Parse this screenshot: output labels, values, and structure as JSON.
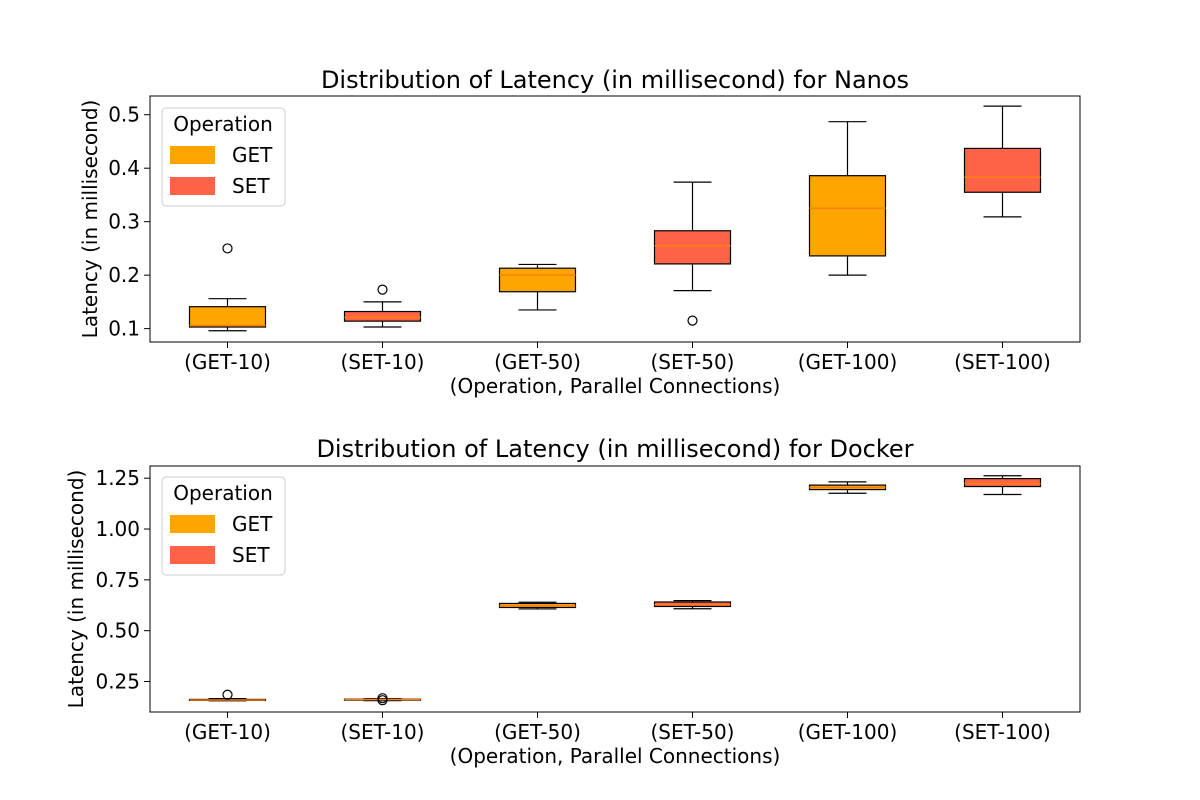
{
  "colors": {
    "GET": "#ffa500",
    "SET": "#ff6347",
    "median": "#ff7f0e",
    "frame": "#000000"
  },
  "chart_data": [
    {
      "type": "box",
      "title": "Distribution of Latency (in millisecond) for Nanos",
      "xlabel": "(Operation, Parallel Connections)",
      "ylabel": "Latency (in millisecond)",
      "ylim": [
        0.075,
        0.535
      ],
      "yticks": [
        0.1,
        0.2,
        0.3,
        0.4,
        0.5
      ],
      "ytick_labels": [
        "0.1",
        "0.2",
        "0.3",
        "0.4",
        "0.5"
      ],
      "categories": [
        "(GET-10)",
        "(SET-10)",
        "(GET-50)",
        "(SET-50)",
        "(GET-100)",
        "(SET-100)"
      ],
      "legend": {
        "title": "Operation",
        "entries": [
          "GET",
          "SET"
        ],
        "location": "upper left"
      },
      "boxes": [
        {
          "operation": "GET",
          "whislo": 0.096,
          "q1": 0.103,
          "med": 0.106,
          "q3": 0.141,
          "whishi": 0.156,
          "fliers": [
            0.25
          ]
        },
        {
          "operation": "SET",
          "whislo": 0.103,
          "q1": 0.114,
          "med": 0.121,
          "q3": 0.132,
          "whishi": 0.15,
          "fliers": [
            0.173
          ]
        },
        {
          "operation": "GET",
          "whislo": 0.135,
          "q1": 0.169,
          "med": 0.2,
          "q3": 0.213,
          "whishi": 0.22,
          "fliers": []
        },
        {
          "operation": "SET",
          "whislo": 0.171,
          "q1": 0.221,
          "med": 0.255,
          "q3": 0.283,
          "whishi": 0.374,
          "fliers": [
            0.115
          ]
        },
        {
          "operation": "GET",
          "whislo": 0.2,
          "q1": 0.236,
          "med": 0.325,
          "q3": 0.386,
          "whishi": 0.487,
          "fliers": []
        },
        {
          "operation": "SET",
          "whislo": 0.309,
          "q1": 0.355,
          "med": 0.383,
          "q3": 0.437,
          "whishi": 0.516,
          "fliers": []
        }
      ]
    },
    {
      "type": "box",
      "title": "Distribution of Latency (in millisecond) for Docker",
      "xlabel": "(Operation, Parallel Connections)",
      "ylabel": "Latency (in millisecond)",
      "ylim": [
        0.1,
        1.31
      ],
      "yticks": [
        0.25,
        0.5,
        0.75,
        1.0,
        1.25
      ],
      "ytick_labels": [
        "0.25",
        "0.50",
        "0.75",
        "1.00",
        "1.25"
      ],
      "categories": [
        "(GET-10)",
        "(SET-10)",
        "(GET-50)",
        "(SET-50)",
        "(GET-100)",
        "(SET-100)"
      ],
      "legend": {
        "title": "Operation",
        "entries": [
          "GET",
          "SET"
        ],
        "location": "upper left"
      },
      "boxes": [
        {
          "operation": "GET",
          "whislo": 0.155,
          "q1": 0.157,
          "med": 0.159,
          "q3": 0.162,
          "whishi": 0.166,
          "fliers": [
            0.185
          ]
        },
        {
          "operation": "SET",
          "whislo": 0.156,
          "q1": 0.158,
          "med": 0.161,
          "q3": 0.163,
          "whishi": 0.165,
          "fliers": [
            0.158,
            0.168
          ]
        },
        {
          "operation": "GET",
          "whislo": 0.607,
          "q1": 0.614,
          "med": 0.622,
          "q3": 0.634,
          "whishi": 0.64,
          "fliers": []
        },
        {
          "operation": "SET",
          "whislo": 0.608,
          "q1": 0.619,
          "med": 0.629,
          "q3": 0.641,
          "whishi": 0.648,
          "fliers": []
        },
        {
          "operation": "GET",
          "whislo": 1.176,
          "q1": 1.194,
          "med": 1.205,
          "q3": 1.216,
          "whishi": 1.232,
          "fliers": []
        },
        {
          "operation": "SET",
          "whislo": 1.17,
          "q1": 1.209,
          "med": 1.224,
          "q3": 1.248,
          "whishi": 1.262,
          "fliers": []
        }
      ]
    }
  ]
}
